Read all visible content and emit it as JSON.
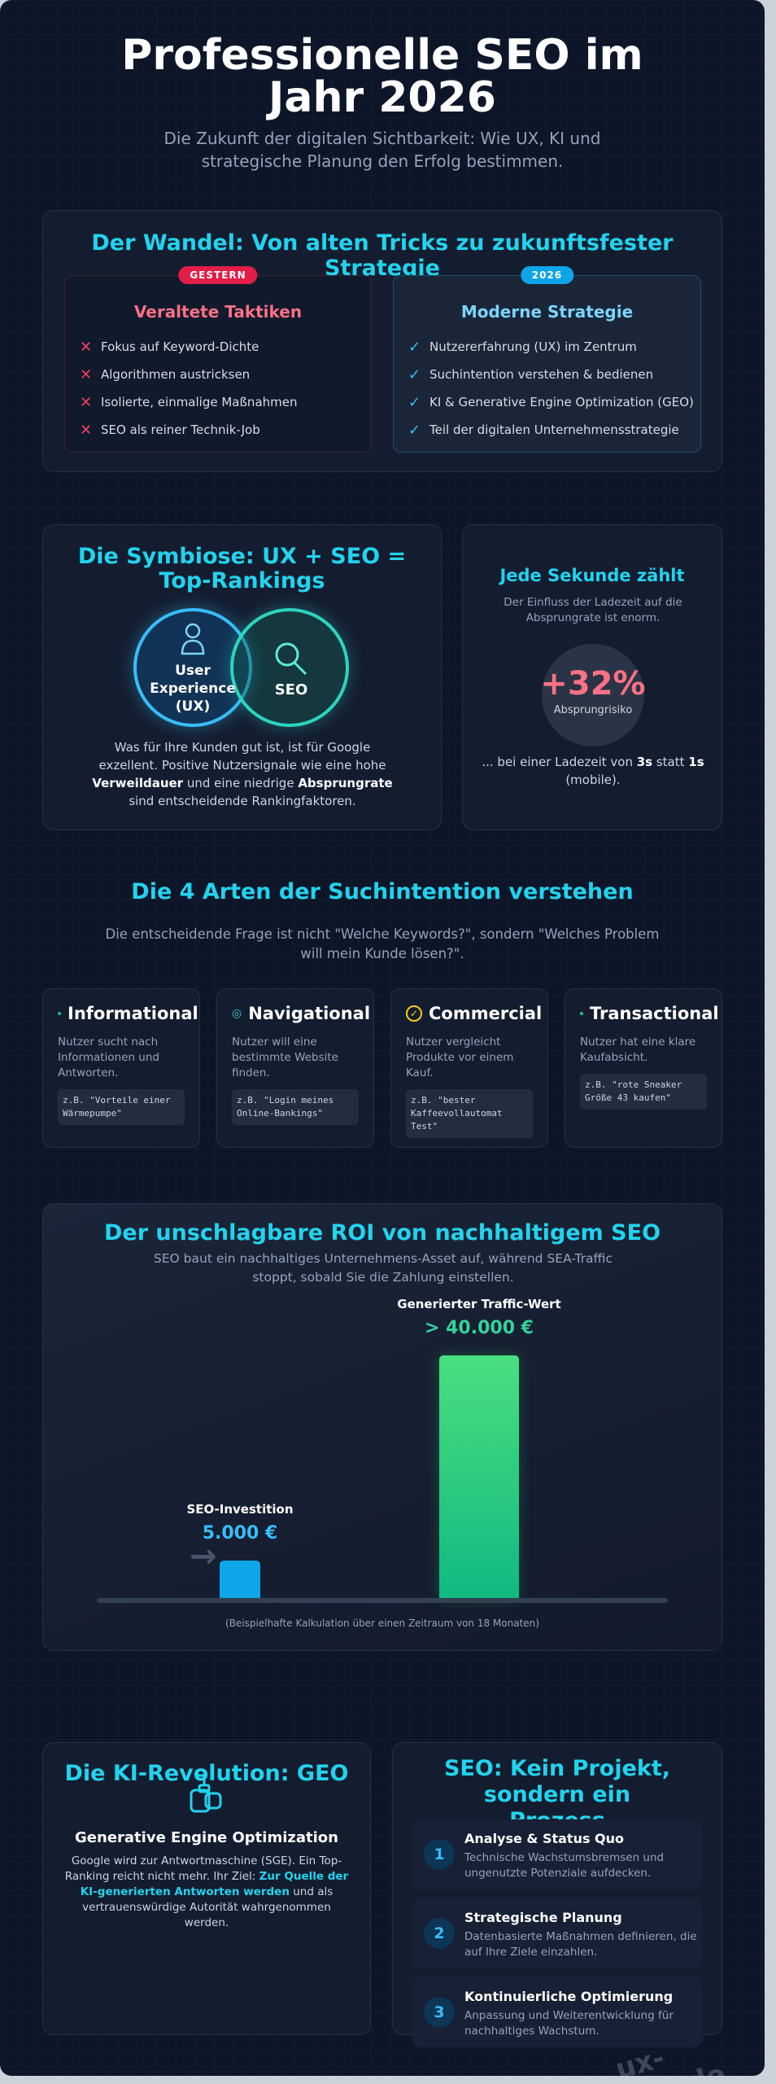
{
  "header": {
    "title": "Professionelle SEO im Jahr 2026",
    "subtitle": "Die Zukunft der digitalen Sichtbarkeit: Wie UX, KI und strategische Planung den Erfolg bestimmen."
  },
  "wandel": {
    "heading": "Der Wandel: Von alten Tricks zu zukunftsfester Strategie",
    "old": {
      "badge": "GESTERN",
      "title": "Veraltete Taktiken",
      "items": [
        "Fokus auf Keyword-Dichte",
        "Algorithmen austricksen",
        "Isolierte, einmalige Maßnahmen",
        "SEO als reiner Technik-Job"
      ]
    },
    "new": {
      "badge": "2026",
      "title": "Moderne Strategie",
      "items": [
        "Nutzererfahrung (UX) im Zentrum",
        "Suchintention verstehen & bedienen",
        "KI & Generative Engine Optimization (GEO)",
        "Teil der digitalen Unternehmensstrategie"
      ]
    }
  },
  "symbiose": {
    "heading": "Die Symbiose: UX + SEO = Top-Rankings",
    "ux_label": "User Experience (UX)",
    "seo_label": "SEO",
    "text_1": "Was für Ihre Kunden gut ist, ist für Google exzellent. Positive Nutzersignale wie eine hohe ",
    "bold_1": "Verweildauer",
    "text_2": " und eine niedrige ",
    "bold_2": "Absprungrate",
    "text_3": " sind entscheidende Rankingfaktoren."
  },
  "sekunde": {
    "heading": "Jede Sekunde zählt",
    "subtitle": "Der Einfluss der Ladezeit auf die Absprungrate ist enorm.",
    "stat": "+32%",
    "stat_label": "Absprungrisiko",
    "text_1": "... bei einer Ladezeit von ",
    "bold_1": "3s",
    "text_2": " statt ",
    "bold_2": "1s",
    "text_3": " (mobile)."
  },
  "intention": {
    "heading": "Die 4 Arten der Suchintention verstehen",
    "subtitle": "Die entscheidende Frage ist nicht \"Welche Keywords?\", sondern \"Welches Problem will mein Kunde lösen?\".",
    "cards": [
      {
        "title": "Informational",
        "icon": "info-dot-icon",
        "desc": "Nutzer sucht nach Informationen und Antworten.",
        "example": "z.B. \"Vorteile einer Wärmepumpe\""
      },
      {
        "title": "Navigational",
        "icon": "location-pin-icon",
        "desc": "Nutzer will eine bestimmte Website finden.",
        "example": "z.B. \"Login meines Online-Bankings\""
      },
      {
        "title": "Commercial",
        "icon": "check-circle-icon",
        "desc": "Nutzer vergleicht Produkte vor einem Kauf.",
        "example": "z.B. \"bester Kaffeevollautomat Test\""
      },
      {
        "title": "Transactional",
        "icon": "cart-dot-icon",
        "desc": "Nutzer hat eine klare Kaufabsicht.",
        "example": "z.B. \"rote Sneaker Größe 43 kaufen\""
      }
    ]
  },
  "roi": {
    "heading": "Der unschlagbare ROI von nachhaltigem SEO",
    "subtitle": "SEO baut ein nachhaltiges Unternehmens-Asset auf, während SEA-Traffic stoppt, sobald Sie die Zahlung einstellen.",
    "note": "(Beispielhafte Kalkulation über einen Zeitraum von 18 Monaten)"
  },
  "chart_data": {
    "type": "bar",
    "categories": [
      "SEO-Investition",
      "Generierter Traffic-Wert"
    ],
    "values": [
      5000,
      40000
    ],
    "value_labels": [
      "5.000 €",
      "> 40.000 €"
    ],
    "colors": [
      "#0ea5e9",
      "#22c55e"
    ],
    "grid": false
  },
  "geo": {
    "heading": "Die KI-Revolution: GEO",
    "icon": "ai-robot-icon",
    "title": "Generative Engine Optimization",
    "text_1": "Google wird zur Antwortmaschine (SGE). Ein Top-Ranking reicht nicht mehr. Ihr Ziel: ",
    "highlight": "Zur Quelle der KI-generierten Antworten werden",
    "text_2": " und als vertrauenswürdige Autorität wahrgenommen werden."
  },
  "prozess": {
    "heading": "SEO: Kein Projekt, sondern ein Prozess",
    "steps": [
      {
        "num": "1",
        "title": "Analyse & Status Quo",
        "desc": "Technische Wachstumsbremsen und ungenutzte Potenziale aufdecken."
      },
      {
        "num": "2",
        "title": "Strategische Planung",
        "desc": "Datenbasierte Maßnahmen definieren, die auf Ihre Ziele einzahlen."
      },
      {
        "num": "3",
        "title": "Kontinuierliche Optimierung",
        "desc": "Anpassung und Weiterentwicklung für nachhaltiges Wachstum."
      }
    ]
  },
  "watermark": "ux-seo.de",
  "colors": {
    "accent": "#22d3ee",
    "red": "#f43f5e",
    "blue": "#0ea5e9",
    "green": "#22c55e"
  }
}
